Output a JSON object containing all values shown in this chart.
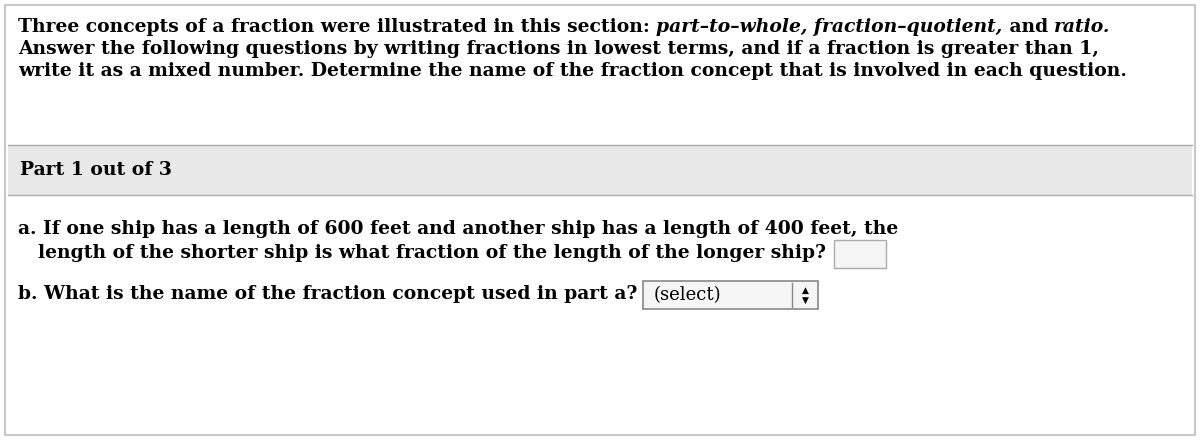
{
  "bg_color": "#ffffff",
  "header_normal1": "Three concepts of a fraction were illustrated in this section: ",
  "header_italic1": "part–to–whole, fraction–quotient,",
  "header_normal2": " and ",
  "header_italic2": "ratio.",
  "header_line2": "Answer the following questions by writing fractions in lowest terms, and if a fraction is greater than 1,",
  "header_line3": "write it as a mixed number. Determine the name of the fraction concept that is involved in each question.",
  "part_label": "Part 1 out of 3",
  "part_bg": "#e8e8e8",
  "q_a_line1": "a. If one ship has a length of 600 feet and another ship has a length of 400 feet, the",
  "q_a_line2": "length of the shorter ship is what fraction of the length of the longer ship?",
  "q_b": "b. What is the name of the fraction concept used in part a?",
  "select_text": "(select)",
  "font_size": 13.5,
  "text_color": "#000000",
  "border_color": "#bbbbbb",
  "part_border_color": "#aaaaaa",
  "select_box_bg": "#f5f5f5",
  "input_box_bg": "#f5f5f5"
}
